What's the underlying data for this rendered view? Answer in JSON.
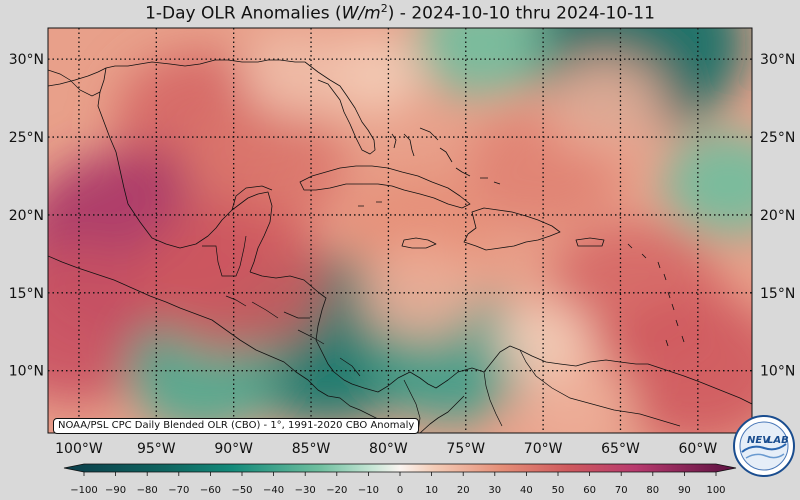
{
  "title": {
    "prefix": "1-Day OLR Anomalies (",
    "unit_var": "W/m",
    "unit_exp": "2",
    "suffix": ") - 2024-10-10 thru 2024-10-11"
  },
  "map": {
    "lon_range": [
      -102,
      -56.5
    ],
    "lat_range": [
      6,
      32
    ],
    "lat_ticks": [
      {
        "value": 30,
        "label": "30°N"
      },
      {
        "value": 25,
        "label": "25°N"
      },
      {
        "value": 20,
        "label": "20°N"
      },
      {
        "value": 15,
        "label": "15°N"
      },
      {
        "value": 10,
        "label": "10°N"
      }
    ],
    "lon_ticks": [
      {
        "value": -100,
        "label": "100°W"
      },
      {
        "value": -95,
        "label": "95°W"
      },
      {
        "value": -90,
        "label": "90°W"
      },
      {
        "value": -85,
        "label": "85°W"
      },
      {
        "value": -80,
        "label": "80°W"
      },
      {
        "value": -75,
        "label": "75°W"
      },
      {
        "value": -70,
        "label": "70°W"
      },
      {
        "value": -65,
        "label": "65°W"
      },
      {
        "value": -60,
        "label": "60°W"
      }
    ]
  },
  "colorbar": {
    "ticks": [
      {
        "value": -100,
        "label": "−100"
      },
      {
        "value": -90,
        "label": "−90"
      },
      {
        "value": -80,
        "label": "−80"
      },
      {
        "value": -70,
        "label": "−70"
      },
      {
        "value": -60,
        "label": "−60"
      },
      {
        "value": -50,
        "label": "−50"
      },
      {
        "value": -40,
        "label": "−40"
      },
      {
        "value": -30,
        "label": "−30"
      },
      {
        "value": -20,
        "label": "−20"
      },
      {
        "value": -10,
        "label": "−10"
      },
      {
        "value": 0,
        "label": "0"
      },
      {
        "value": 10,
        "label": "10"
      },
      {
        "value": 20,
        "label": "20"
      },
      {
        "value": 30,
        "label": "30"
      },
      {
        "value": 40,
        "label": "40"
      },
      {
        "value": 50,
        "label": "50"
      },
      {
        "value": 60,
        "label": "60"
      },
      {
        "value": 70,
        "label": "70"
      },
      {
        "value": 80,
        "label": "80"
      },
      {
        "value": 90,
        "label": "90"
      },
      {
        "value": 100,
        "label": "100"
      }
    ],
    "range": [
      -100,
      100
    ],
    "colors": {
      "neg_strong": "#0b3d4a",
      "neg_mid": "#138a7a",
      "neg_weak": "#a9d9c4",
      "neutral": "#faf4f0",
      "pos_weak": "#f0b8a0",
      "pos_mid": "#d96a60",
      "pos_strong": "#b83a6e",
      "pos_max": "#5a1040"
    }
  },
  "anomaly_field": [
    {
      "lon": -92,
      "lat": 26,
      "value": 45
    },
    {
      "lon": -96,
      "lat": 18,
      "value": 75
    },
    {
      "lon": -88,
      "lat": 23,
      "value": 40
    },
    {
      "lon": -100,
      "lat": 13,
      "value": 55
    },
    {
      "lon": -84,
      "lat": 12,
      "value": -60
    },
    {
      "lon": -92,
      "lat": 10,
      "value": -35
    },
    {
      "lon": -76,
      "lat": 11,
      "value": -40
    },
    {
      "lon": -70,
      "lat": 23,
      "value": 35
    },
    {
      "lon": -64,
      "lat": 15,
      "value": 45
    },
    {
      "lon": -60,
      "lat": 10,
      "value": 50
    },
    {
      "lon": -78,
      "lat": 19,
      "value": 30
    },
    {
      "lon": -64,
      "lat": 31,
      "value": -65
    },
    {
      "lon": -74,
      "lat": 31,
      "value": -25
    },
    {
      "lon": -58,
      "lat": 22,
      "value": -25
    },
    {
      "lon": -66,
      "lat": 27,
      "value": 20
    },
    {
      "lon": -81,
      "lat": 29,
      "value": 10
    },
    {
      "lon": -78,
      "lat": 15,
      "value": 20
    },
    {
      "lon": -68,
      "lat": 8,
      "value": 20
    },
    {
      "lon": -90,
      "lat": 16,
      "value": 50
    },
    {
      "lon": -70,
      "lat": 12,
      "value": 10
    },
    {
      "lon": -86,
      "lat": 29,
      "value": 15
    }
  ],
  "source_note": "NOAA/PSL CPC Daily Blended OLR (CBO) - 1°, 1991-2020 CBO Anomaly",
  "logo": {
    "text": "NEV",
    "text2": "LAB",
    "icon": "noaa-nevlab-logo"
  }
}
